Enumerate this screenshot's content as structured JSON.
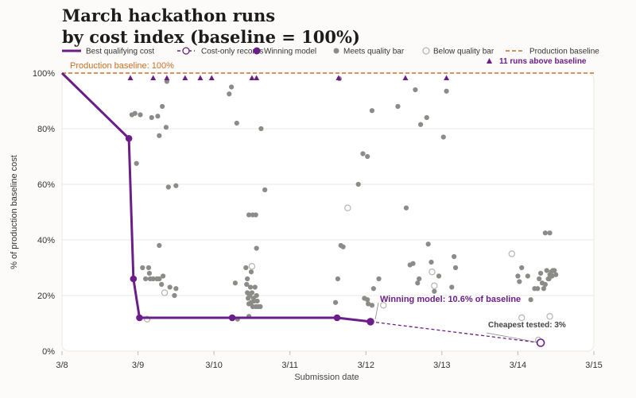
{
  "title": {
    "line1": "March hackathon runs",
    "line2": "by cost index (baseline = 100%)"
  },
  "legend": [
    {
      "label": "Best qualifying cost",
      "kind": "line-solid"
    },
    {
      "label": "Cost-only records",
      "kind": "line-dashed"
    },
    {
      "label": "Winning model",
      "kind": "dot-filled-purple"
    },
    {
      "label": "Meets quality bar",
      "kind": "dot-filled-gray"
    },
    {
      "label": "Below quality bar",
      "kind": "dot-hollow"
    },
    {
      "label": "Production baseline",
      "kind": "line-dashed-orange"
    }
  ],
  "colors": {
    "purple": "#6b1e87",
    "gray": "#8b8b88",
    "baseline": "#c8702a",
    "grid": "#ebe7e4",
    "hollow_stroke": "#b7b4b1"
  },
  "chart_data": {
    "type": "scatter",
    "xlabel": "Submission date",
    "ylabel": "% of production baseline cost",
    "x_ticks": [
      "3/8",
      "3/9",
      "3/10",
      "3/11",
      "3/12",
      "3/13",
      "3/14",
      "3/15"
    ],
    "y_ticks": [
      "0%",
      "20%",
      "40%",
      "60%",
      "80%",
      "100%"
    ],
    "xlim": [
      0,
      7
    ],
    "ylim": [
      0,
      100
    ],
    "grid": "horizontal",
    "baseline": {
      "value": 100,
      "label": "Production baseline: 100%"
    },
    "above_baseline": {
      "label": "11 runs above baseline",
      "x": [
        0.9,
        1.2,
        1.38,
        1.62,
        1.82,
        1.97,
        2.5,
        2.56,
        3.64,
        4.52,
        5.06
      ]
    },
    "meets_quality_bar": [
      [
        0.92,
        85
      ],
      [
        0.96,
        85.5
      ],
      [
        1.03,
        85
      ],
      [
        0.98,
        67.5
      ],
      [
        1.06,
        30
      ],
      [
        1.15,
        28
      ],
      [
        1.1,
        26
      ],
      [
        1.16,
        26
      ],
      [
        1.2,
        26
      ],
      [
        1.25,
        26
      ],
      [
        1.28,
        26
      ],
      [
        1.33,
        27
      ],
      [
        1.31,
        24
      ],
      [
        1.42,
        23
      ],
      [
        1.48,
        20
      ],
      [
        1.5,
        22.5
      ],
      [
        1.18,
        84
      ],
      [
        1.26,
        84.5
      ],
      [
        1.32,
        88
      ],
      [
        1.28,
        77.5
      ],
      [
        1.37,
        80.5
      ],
      [
        1.38,
        97
      ],
      [
        1.4,
        59
      ],
      [
        1.5,
        59.5
      ],
      [
        1.28,
        38
      ],
      [
        1.14,
        30
      ],
      [
        2.2,
        92.5
      ],
      [
        2.23,
        95
      ],
      [
        2.3,
        82
      ],
      [
        2.28,
        24.5
      ],
      [
        2.31,
        11.5
      ],
      [
        2.42,
        30
      ],
      [
        2.43,
        24
      ],
      [
        2.44,
        21
      ],
      [
        2.45,
        19
      ],
      [
        2.46,
        17
      ],
      [
        2.47,
        20
      ],
      [
        2.48,
        23
      ],
      [
        2.49,
        17.5
      ],
      [
        2.5,
        21
      ],
      [
        2.51,
        16
      ],
      [
        2.52,
        19
      ],
      [
        2.53,
        18
      ],
      [
        2.54,
        23
      ],
      [
        2.55,
        16
      ],
      [
        2.56,
        20
      ],
      [
        2.57,
        18
      ],
      [
        2.58,
        16
      ],
      [
        2.46,
        12.5
      ],
      [
        2.44,
        26
      ],
      [
        2.46,
        49
      ],
      [
        2.51,
        49
      ],
      [
        2.55,
        49
      ],
      [
        2.56,
        37
      ],
      [
        2.62,
        80
      ],
      [
        2.67,
        58
      ],
      [
        2.49,
        28.5
      ],
      [
        2.61,
        16
      ],
      [
        3.6,
        17.5
      ],
      [
        3.63,
        26
      ],
      [
        3.67,
        38
      ],
      [
        3.7,
        37.5
      ],
      [
        3.65,
        98
      ],
      [
        3.9,
        60
      ],
      [
        3.96,
        71
      ],
      [
        4.02,
        70
      ],
      [
        4.08,
        86.5
      ],
      [
        3.98,
        19
      ],
      [
        4.02,
        18.5
      ],
      [
        4.03,
        17
      ],
      [
        4.08,
        16.5
      ],
      [
        4.1,
        22.5
      ],
      [
        4.17,
        26
      ],
      [
        4.42,
        88
      ],
      [
        4.53,
        51.5
      ],
      [
        4.58,
        31
      ],
      [
        4.62,
        31.5
      ],
      [
        4.65,
        94
      ],
      [
        4.68,
        24.5
      ],
      [
        4.7,
        26
      ],
      [
        4.72,
        81.5
      ],
      [
        4.8,
        84
      ],
      [
        4.82,
        38.5
      ],
      [
        4.86,
        32
      ],
      [
        4.9,
        21.5
      ],
      [
        4.96,
        27
      ],
      [
        5.02,
        77
      ],
      [
        5.06,
        93.5
      ],
      [
        5.18,
        30
      ],
      [
        5.16,
        34
      ],
      [
        5.13,
        23
      ],
      [
        6.0,
        27
      ],
      [
        6.02,
        25
      ],
      [
        6.05,
        30
      ],
      [
        6.13,
        27
      ],
      [
        6.17,
        18.5
      ],
      [
        6.22,
        22.5
      ],
      [
        6.26,
        22.5
      ],
      [
        6.28,
        26
      ],
      [
        6.3,
        28
      ],
      [
        6.32,
        24.5
      ],
      [
        6.34,
        22.5
      ],
      [
        6.36,
        24
      ],
      [
        6.38,
        29
      ],
      [
        6.4,
        26
      ],
      [
        6.42,
        27.5
      ],
      [
        6.44,
        28.5
      ],
      [
        6.45,
        27
      ],
      [
        6.48,
        29
      ],
      [
        6.5,
        27.5
      ],
      [
        6.36,
        42.5
      ],
      [
        6.42,
        42.5
      ],
      [
        6.41,
        26
      ],
      [
        6.46,
        29
      ]
    ],
    "below_quality_bar": [
      [
        1.12,
        11.5
      ],
      [
        1.35,
        21
      ],
      [
        2.5,
        30.5
      ],
      [
        3.76,
        51.5
      ],
      [
        4.23,
        16.5
      ],
      [
        4.87,
        28.5
      ],
      [
        4.9,
        23.5
      ],
      [
        5.92,
        35
      ],
      [
        6.05,
        12
      ],
      [
        6.42,
        12.5
      ],
      [
        6.27,
        4
      ]
    ],
    "best_qualifying_cost": {
      "x": [
        0,
        0.88,
        0.94,
        1.02,
        2.24,
        3.62,
        4.06
      ],
      "y": [
        100,
        76.5,
        26,
        12,
        12,
        12,
        10.6
      ]
    },
    "cost_only_records": {
      "x": [
        4.06,
        6.3
      ],
      "y": [
        10.6,
        3
      ]
    },
    "winning_model": {
      "x": 4.06,
      "y": 10.6
    },
    "cheapest_tested": {
      "x": 6.3,
      "y": 3
    }
  },
  "annotations": {
    "winning": "Winning model: 10.6% of baseline",
    "cheapest": "Cheapest tested: 3%"
  }
}
